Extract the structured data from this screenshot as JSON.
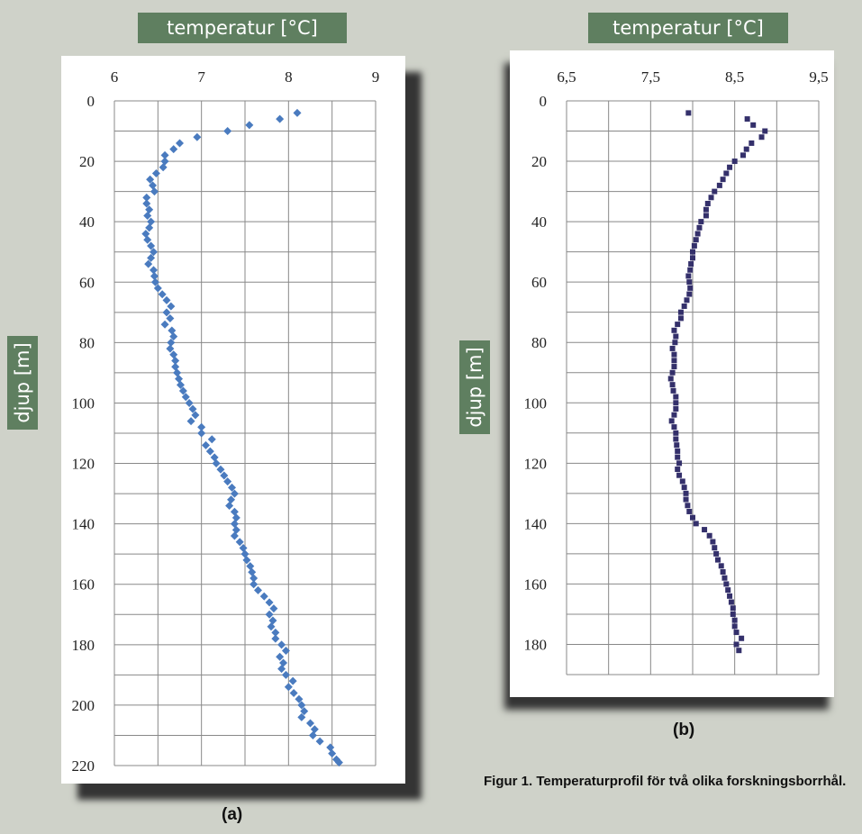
{
  "panels": {
    "a": {
      "xlabel": "temperatur [°C]",
      "ylabel": "djup [m]",
      "sublabel": "(a)"
    },
    "b": {
      "xlabel": "temperatur [°C]",
      "ylabel": "djup [m]",
      "sublabel": "(b)"
    }
  },
  "caption": "Figur 1. Temperaturprofil för två olika forskningsborrhål.",
  "colors": {
    "badge": "#5f7f60",
    "series_a": "#4a7bbf",
    "series_b": "#34306b",
    "grid": "#888888"
  },
  "chart_data": [
    {
      "type": "scatter",
      "title": "",
      "xlabel": "temperatur [°C]",
      "ylabel": "djup [m]",
      "xlim": [
        6,
        9
      ],
      "ylim": [
        0,
        220
      ],
      "y_inverted": true,
      "x_axis_position": "top",
      "xticks": [
        "6",
        "7",
        "8",
        "9"
      ],
      "yticks": [
        "0",
        "20",
        "40",
        "60",
        "80",
        "100",
        "120",
        "140",
        "160",
        "180",
        "200",
        "220"
      ],
      "grid": true,
      "marker": "diamond",
      "points": [
        [
          8.1,
          4
        ],
        [
          7.9,
          6
        ],
        [
          7.55,
          8
        ],
        [
          7.3,
          10
        ],
        [
          6.95,
          12
        ],
        [
          6.75,
          14
        ],
        [
          6.68,
          16
        ],
        [
          6.58,
          18
        ],
        [
          6.58,
          20
        ],
        [
          6.56,
          22
        ],
        [
          6.48,
          24
        ],
        [
          6.41,
          26
        ],
        [
          6.44,
          28
        ],
        [
          6.46,
          30
        ],
        [
          6.37,
          32
        ],
        [
          6.37,
          34
        ],
        [
          6.4,
          36
        ],
        [
          6.38,
          38
        ],
        [
          6.42,
          40
        ],
        [
          6.4,
          42
        ],
        [
          6.36,
          44
        ],
        [
          6.38,
          46
        ],
        [
          6.42,
          48
        ],
        [
          6.45,
          50
        ],
        [
          6.42,
          52
        ],
        [
          6.39,
          54
        ],
        [
          6.45,
          56
        ],
        [
          6.46,
          58
        ],
        [
          6.47,
          60
        ],
        [
          6.5,
          62
        ],
        [
          6.55,
          64
        ],
        [
          6.6,
          66
        ],
        [
          6.65,
          68
        ],
        [
          6.6,
          70
        ],
        [
          6.64,
          72
        ],
        [
          6.58,
          74
        ],
        [
          6.66,
          76
        ],
        [
          6.68,
          78
        ],
        [
          6.65,
          80
        ],
        [
          6.64,
          82
        ],
        [
          6.68,
          84
        ],
        [
          6.7,
          86
        ],
        [
          6.7,
          88
        ],
        [
          6.72,
          90
        ],
        [
          6.74,
          92
        ],
        [
          6.76,
          94
        ],
        [
          6.79,
          96
        ],
        [
          6.82,
          98
        ],
        [
          6.86,
          100
        ],
        [
          6.9,
          102
        ],
        [
          6.93,
          104
        ],
        [
          6.88,
          106
        ],
        [
          7.0,
          108
        ],
        [
          7.0,
          110
        ],
        [
          7.12,
          112
        ],
        [
          7.05,
          114
        ],
        [
          7.1,
          116
        ],
        [
          7.15,
          118
        ],
        [
          7.17,
          120
        ],
        [
          7.22,
          122
        ],
        [
          7.26,
          124
        ],
        [
          7.3,
          126
        ],
        [
          7.35,
          128
        ],
        [
          7.38,
          130
        ],
        [
          7.34,
          132
        ],
        [
          7.32,
          134
        ],
        [
          7.38,
          136
        ],
        [
          7.4,
          138
        ],
        [
          7.38,
          140
        ],
        [
          7.4,
          142
        ],
        [
          7.38,
          144
        ],
        [
          7.44,
          146
        ],
        [
          7.48,
          148
        ],
        [
          7.5,
          150
        ],
        [
          7.52,
          152
        ],
        [
          7.56,
          154
        ],
        [
          7.58,
          156
        ],
        [
          7.6,
          158
        ],
        [
          7.6,
          160
        ],
        [
          7.65,
          162
        ],
        [
          7.72,
          164
        ],
        [
          7.78,
          166
        ],
        [
          7.83,
          168
        ],
        [
          7.78,
          170
        ],
        [
          7.82,
          172
        ],
        [
          7.8,
          174
        ],
        [
          7.85,
          176
        ],
        [
          7.85,
          178
        ],
        [
          7.92,
          180
        ],
        [
          7.97,
          182
        ],
        [
          7.9,
          184
        ],
        [
          7.94,
          186
        ],
        [
          7.92,
          188
        ],
        [
          7.97,
          190
        ],
        [
          8.05,
          192
        ],
        [
          8.0,
          194
        ],
        [
          8.06,
          196
        ],
        [
          8.12,
          198
        ],
        [
          8.15,
          200
        ],
        [
          8.18,
          202
        ],
        [
          8.15,
          204
        ],
        [
          8.25,
          206
        ],
        [
          8.3,
          208
        ],
        [
          8.28,
          210
        ],
        [
          8.36,
          212
        ],
        [
          8.48,
          214
        ],
        [
          8.5,
          216
        ],
        [
          8.55,
          218
        ],
        [
          8.58,
          219
        ]
      ]
    },
    {
      "type": "scatter",
      "title": "",
      "xlabel": "temperatur [°C]",
      "ylabel": "djup [m]",
      "xlim": [
        6.5,
        9.5
      ],
      "ylim": [
        0,
        190
      ],
      "y_inverted": true,
      "x_axis_position": "top",
      "xticks": [
        "6,5",
        "7,5",
        "8,5",
        "9,5"
      ],
      "yticks": [
        "0",
        "20",
        "40",
        "60",
        "80",
        "100",
        "120",
        "140",
        "160",
        "180"
      ],
      "grid": true,
      "marker": "square",
      "points": [
        [
          7.95,
          4
        ],
        [
          8.65,
          6
        ],
        [
          8.72,
          8
        ],
        [
          8.86,
          10
        ],
        [
          8.82,
          12
        ],
        [
          8.7,
          14
        ],
        [
          8.64,
          16
        ],
        [
          8.6,
          18
        ],
        [
          8.5,
          20
        ],
        [
          8.44,
          22
        ],
        [
          8.4,
          24
        ],
        [
          8.36,
          26
        ],
        [
          8.32,
          28
        ],
        [
          8.26,
          30
        ],
        [
          8.22,
          32
        ],
        [
          8.18,
          34
        ],
        [
          8.16,
          36
        ],
        [
          8.16,
          38
        ],
        [
          8.1,
          40
        ],
        [
          8.08,
          42
        ],
        [
          8.06,
          44
        ],
        [
          8.04,
          46
        ],
        [
          8.02,
          48
        ],
        [
          8.0,
          50
        ],
        [
          8.0,
          52
        ],
        [
          7.98,
          54
        ],
        [
          7.97,
          56
        ],
        [
          7.95,
          58
        ],
        [
          7.96,
          60
        ],
        [
          7.97,
          62
        ],
        [
          7.96,
          64
        ],
        [
          7.93,
          66
        ],
        [
          7.9,
          68
        ],
        [
          7.86,
          70
        ],
        [
          7.86,
          72
        ],
        [
          7.82,
          74
        ],
        [
          7.78,
          76
        ],
        [
          7.8,
          78
        ],
        [
          7.79,
          80
        ],
        [
          7.76,
          82
        ],
        [
          7.78,
          84
        ],
        [
          7.78,
          86
        ],
        [
          7.78,
          88
        ],
        [
          7.76,
          90
        ],
        [
          7.74,
          92
        ],
        [
          7.76,
          94
        ],
        [
          7.77,
          96
        ],
        [
          7.8,
          98
        ],
        [
          7.8,
          100
        ],
        [
          7.8,
          102
        ],
        [
          7.78,
          104
        ],
        [
          7.75,
          106
        ],
        [
          7.78,
          108
        ],
        [
          7.8,
          110
        ],
        [
          7.8,
          112
        ],
        [
          7.81,
          114
        ],
        [
          7.82,
          116
        ],
        [
          7.82,
          118
        ],
        [
          7.84,
          120
        ],
        [
          7.82,
          122
        ],
        [
          7.84,
          124
        ],
        [
          7.88,
          126
        ],
        [
          7.9,
          128
        ],
        [
          7.92,
          130
        ],
        [
          7.92,
          132
        ],
        [
          7.94,
          134
        ],
        [
          7.96,
          136
        ],
        [
          8.0,
          138
        ],
        [
          8.04,
          140
        ],
        [
          8.14,
          142
        ],
        [
          8.2,
          144
        ],
        [
          8.24,
          146
        ],
        [
          8.26,
          148
        ],
        [
          8.28,
          150
        ],
        [
          8.3,
          152
        ],
        [
          8.34,
          154
        ],
        [
          8.36,
          156
        ],
        [
          8.38,
          158
        ],
        [
          8.4,
          160
        ],
        [
          8.42,
          162
        ],
        [
          8.44,
          164
        ],
        [
          8.46,
          166
        ],
        [
          8.48,
          168
        ],
        [
          8.48,
          170
        ],
        [
          8.5,
          172
        ],
        [
          8.5,
          174
        ],
        [
          8.52,
          176
        ],
        [
          8.58,
          178
        ],
        [
          8.52,
          180
        ],
        [
          8.55,
          182
        ]
      ]
    }
  ]
}
